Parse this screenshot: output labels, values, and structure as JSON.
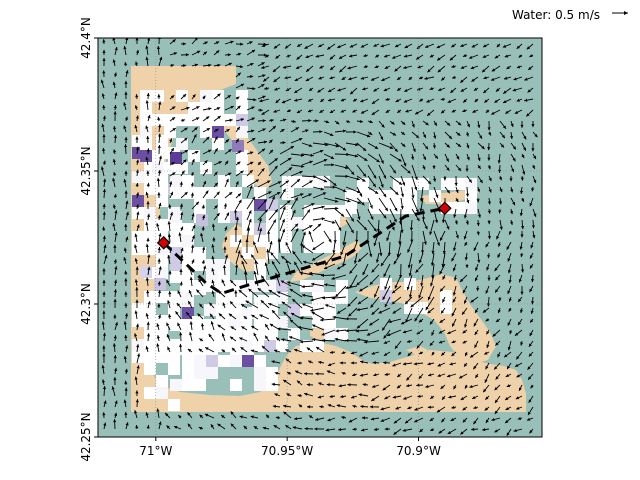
{
  "chart_data": {
    "type": "map",
    "title": "",
    "xlabel": "",
    "ylabel": "",
    "xlim": [
      -71.022,
      -70.853
    ],
    "ylim": [
      42.25,
      42.4
    ],
    "x_ticks": [
      {
        "value": -71.0,
        "label": "71°W"
      },
      {
        "value": -70.95,
        "label": "70.95°W"
      },
      {
        "value": -70.9,
        "label": "70.9°W"
      }
    ],
    "y_ticks": [
      {
        "value": 42.25,
        "label": "42.25°N"
      },
      {
        "value": 42.3,
        "label": "42.3°N"
      },
      {
        "value": 42.35,
        "label": "42.35°N"
      },
      {
        "value": 42.4,
        "label": "42.4°N"
      }
    ],
    "grid": true,
    "quiver_key": {
      "label": "Water: 0.5 m/s",
      "speed_ms": 0.5,
      "placement": "top-right"
    },
    "route": {
      "style": "dashed",
      "color": "#000000",
      "points": [
        {
          "lon": -70.997,
          "lat": 42.323
        },
        {
          "lon": -70.981,
          "lat": 42.308
        },
        {
          "lon": -70.975,
          "lat": 42.304
        },
        {
          "lon": -70.962,
          "lat": 42.308
        },
        {
          "lon": -70.945,
          "lat": 42.313
        },
        {
          "lon": -70.928,
          "lat": 42.318
        },
        {
          "lon": -70.905,
          "lat": 42.333
        },
        {
          "lon": -70.89,
          "lat": 42.336
        }
      ],
      "markers": [
        {
          "name": "start",
          "lon": -70.997,
          "lat": 42.323,
          "color": "#d40000"
        },
        {
          "name": "end",
          "lon": -70.89,
          "lat": 42.336,
          "color": "#d40000"
        }
      ]
    },
    "colors": {
      "water": "#99bfb9",
      "land": "#f0d2aa",
      "cell_light": "#f7f6fb",
      "cell_mid": "#cfcbe4",
      "cell_dark": "#6a4fa3",
      "arrow": "#000000"
    }
  }
}
